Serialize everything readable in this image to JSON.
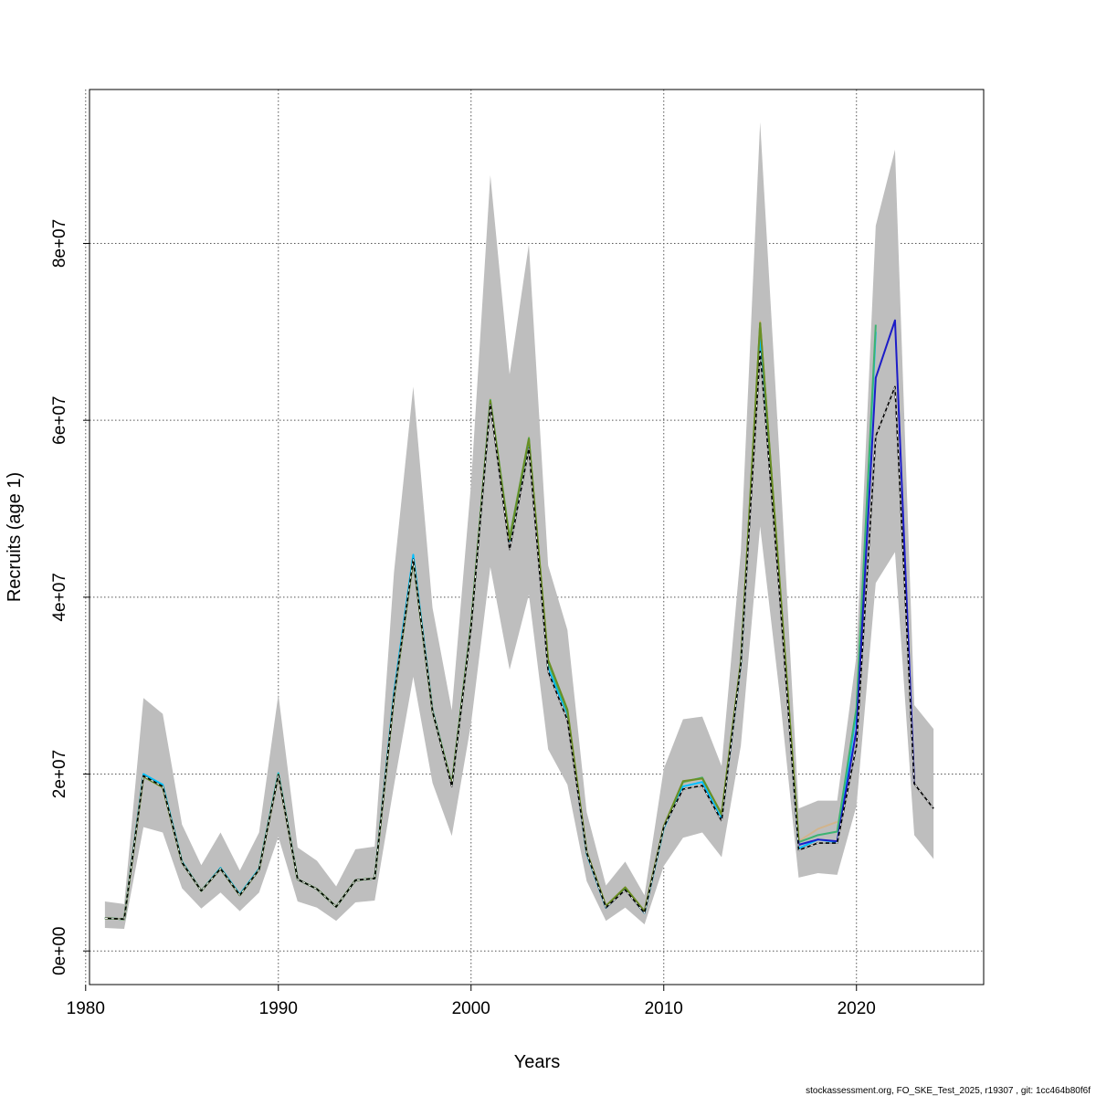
{
  "chart_data": {
    "type": "line",
    "title": "",
    "xlabel": "Years",
    "ylabel": "Recruits (age 1)",
    "xlim": [
      1980.2,
      2026.6
    ],
    "ylim": [
      -3800000.0,
      97400000.0
    ],
    "x_ticks": [
      1980,
      1990,
      2000,
      2010,
      2020
    ],
    "x_tick_labels": [
      "1980",
      "1990",
      "2000",
      "2010",
      "2020"
    ],
    "y_ticks": [
      0,
      20000000,
      40000000,
      60000000,
      80000000
    ],
    "y_tick_labels": [
      "0e+00",
      "2e+07",
      "4e+07",
      "6e+07",
      "8e+07"
    ],
    "grid": true,
    "legend": "none",
    "footer": "stockassessment.org, FO_SKE_Test_2025, r19307 , git: 1cc464b80f6f",
    "confidence_band": {
      "color": "#bebebe",
      "x": [
        1981,
        1982,
        1983,
        1984,
        1985,
        1986,
        1987,
        1988,
        1989,
        1990,
        1991,
        1992,
        1993,
        1994,
        1995,
        1996,
        1997,
        1998,
        1999,
        2000,
        2001,
        2002,
        2003,
        2004,
        2005,
        2006,
        2007,
        2008,
        2009,
        2010,
        2011,
        2012,
        2013,
        2014,
        2015,
        2016,
        2017,
        2018,
        2019,
        2020,
        2021,
        2022,
        2023,
        2024
      ],
      "lower": [
        2600000.0,
        2500000.0,
        14000000.0,
        13400000.0,
        7100000.0,
        4800000.0,
        6600000.0,
        4500000.0,
        6600000.0,
        12900000.0,
        5600000.0,
        4900000.0,
        3400000.0,
        5500000.0,
        5700000.0,
        18700000.0,
        31000000.0,
        19000000.0,
        13000000.0,
        25700000.0,
        43400000.0,
        31800000.0,
        40300000.0,
        22800000.0,
        18800000.0,
        7900000.0,
        3400000.0,
        4900000.0,
        3000000.0,
        9600000.0,
        12800000.0,
        13400000.0,
        10600000.0,
        23200000.0,
        48000000.0,
        29300000.0,
        8300000.0,
        8800000.0,
        8600000.0,
        16400000.0,
        41600000.0,
        45100000.0,
        13100000.0,
        10400000.0
      ],
      "upper": [
        5600000.0,
        5300000.0,
        28600000.0,
        26800000.0,
        14300000.0,
        9700000.0,
        13400000.0,
        9100000.0,
        13400000.0,
        29000000.0,
        11700000.0,
        10200000.0,
        7300000.0,
        11500000.0,
        11800000.0,
        42800000.0,
        63800000.0,
        38800000.0,
        27200000.0,
        52800000.0,
        87700000.0,
        65200000.0,
        79900000.0,
        43600000.0,
        36300000.0,
        15700000.0,
        7400000.0,
        10100000.0,
        6300000.0,
        20600000.0,
        26200000.0,
        26500000.0,
        20900000.0,
        45200000.0,
        93700000.0,
        56100000.0,
        16100000.0,
        17000000.0,
        17000000.0,
        33400000.0,
        82000000.0,
        90600000.0,
        27800000.0,
        25100000.0
      ]
    },
    "series": [
      {
        "color": "#d2b48c",
        "width": 2,
        "x": [
          1981,
          1982,
          1983,
          1984,
          1985,
          1986,
          1987,
          1988,
          1989,
          1990,
          1991,
          1992,
          1993,
          1994,
          1995,
          1996,
          1997,
          1998,
          1999,
          2000,
          2001,
          2002,
          2003,
          2004,
          2005,
          2006,
          2007,
          2008,
          2009,
          2010,
          2011,
          2012,
          2013,
          2014,
          2015,
          2016,
          2017,
          2018,
          2019
        ],
        "y": [
          3700000.0,
          3600000.0,
          19900000.0,
          18700000.0,
          10100000.0,
          6800000.0,
          9300000.0,
          6300000.0,
          9200000.0,
          19900000.0,
          8100000.0,
          7000000.0,
          5000000.0,
          8000000.0,
          8200000.0,
          28800000.0,
          44400000.0,
          27200000.0,
          18800000.0,
          36900000.0,
          62400000.0,
          46800000.0,
          58100000.0,
          32800000.0,
          27200000.0,
          11100000.0,
          5000000.0,
          7100000.0,
          4400000.0,
          14000000.0,
          19000000.0,
          19600000.0,
          15200000.0,
          32600000.0,
          71200000.0,
          42100000.0,
          12400000.0,
          13800000.0,
          14600000.0
        ]
      },
      {
        "color": "#00bfff",
        "width": 2,
        "x": [
          1981,
          1982,
          1983,
          1984,
          1985,
          1986,
          1987,
          1988,
          1989,
          1990,
          1991,
          1992,
          1993,
          1994,
          1995,
          1996,
          1997,
          1998,
          1999,
          2000,
          2001,
          2002,
          2003,
          2004,
          2005,
          2006,
          2007,
          2008,
          2009,
          2010,
          2011,
          2012,
          2013,
          2014,
          2015,
          2016,
          2017,
          2018,
          2019,
          2020,
          2021
        ],
        "y": [
          3700000.0,
          3600000.0,
          20000000.0,
          18800000.0,
          10100000.0,
          6800000.0,
          9400000.0,
          6400000.0,
          9300000.0,
          20100000.0,
          8100000.0,
          7000000.0,
          5000000.0,
          8000000.0,
          8200000.0,
          29200000.0,
          44800000.0,
          27200000.0,
          18800000.0,
          36900000.0,
          62200000.0,
          46400000.0,
          57800000.0,
          31900000.0,
          26800000.0,
          11000000.0,
          4900000.0,
          7000000.0,
          4300000.0,
          13900000.0,
          18600000.0,
          19100000.0,
          14900000.0,
          32500000.0,
          69400000.0,
          41500000.0,
          11600000.0,
          12600000.0,
          12300000.0,
          27000000.0,
          70000000.0
        ]
      },
      {
        "color": "#3cb371",
        "width": 2,
        "x": [
          1981,
          1982,
          1983,
          1984,
          1985,
          1986,
          1987,
          1988,
          1989,
          1990,
          1991,
          1992,
          1993,
          1994,
          1995,
          1996,
          1997,
          1998,
          1999,
          2000,
          2001,
          2002,
          2003,
          2004,
          2005,
          2006,
          2007,
          2008,
          2009,
          2010,
          2011,
          2012,
          2013,
          2014,
          2015,
          2016,
          2017,
          2018,
          2019,
          2020,
          2021
        ],
        "y": [
          3700000.0,
          3600000.0,
          19800000.0,
          18600000.0,
          10000000.0,
          6800000.0,
          9300000.0,
          6300000.0,
          9200000.0,
          20000000.0,
          8100000.0,
          7000000.0,
          5000000.0,
          8000000.0,
          8200000.0,
          28700000.0,
          44200000.0,
          27100000.0,
          18800000.0,
          36800000.0,
          62300000.0,
          46700000.0,
          58000000.0,
          32600000.0,
          27000000.0,
          11100000.0,
          5000000.0,
          7100000.0,
          4400000.0,
          14000000.0,
          19100000.0,
          19600000.0,
          15400000.0,
          32600000.0,
          71000000.0,
          42000000.0,
          12300000.0,
          13100000.0,
          13500000.0,
          27500000.0,
          70800000.0
        ]
      },
      {
        "color": "#1c1cc8",
        "width": 2,
        "x": [
          2016,
          2017,
          2018,
          2019,
          2020,
          2021,
          2022,
          2023
        ],
        "y": [
          41800000.0,
          12000000.0,
          12600000.0,
          12400000.0,
          25000000.0,
          64800000.0,
          71300000.0,
          18900000.0
        ]
      },
      {
        "color": "#6b8e23",
        "width": 2,
        "x": [
          1981,
          1982,
          1983,
          1984,
          1985,
          1986,
          1987,
          1988,
          1989,
          1990,
          1991,
          1992,
          1993,
          1994,
          1995,
          1996,
          1997,
          1998,
          1999,
          2000,
          2001,
          2002,
          2003,
          2004,
          2005,
          2006,
          2007,
          2008,
          2009,
          2010,
          2011,
          2012,
          2013,
          2014,
          2015,
          2016,
          2017
        ],
        "y": [
          3700000.0,
          3600000.0,
          19700000.0,
          18500000.0,
          10000000.0,
          6800000.0,
          9300000.0,
          6300000.0,
          9200000.0,
          19900000.0,
          8100000.0,
          7000000.0,
          5000000.0,
          8000000.0,
          8200000.0,
          28700000.0,
          44200000.0,
          27100000.0,
          18800000.0,
          36800000.0,
          62200000.0,
          46500000.0,
          57900000.0,
          32900000.0,
          27300000.0,
          11200000.0,
          5100000.0,
          7200000.0,
          4500000.0,
          14100000.0,
          19200000.0,
          19500000.0,
          15500000.0,
          32700000.0,
          71000000.0,
          42200000.0,
          12500000.0
        ]
      },
      {
        "color": "#000000",
        "width": 1.6,
        "dashed": true,
        "x": [
          1981,
          1982,
          1983,
          1984,
          1985,
          1986,
          1987,
          1988,
          1989,
          1990,
          1991,
          1992,
          1993,
          1994,
          1995,
          1996,
          1997,
          1998,
          1999,
          2000,
          2001,
          2002,
          2003,
          2004,
          2005,
          2006,
          2007,
          2008,
          2009,
          2010,
          2011,
          2012,
          2013,
          2014,
          2015,
          2016,
          2017,
          2018,
          2019,
          2020,
          2021,
          2022,
          2023,
          2024
        ],
        "y": [
          3700000.0,
          3600000.0,
          19800000.0,
          18600000.0,
          10000000.0,
          6800000.0,
          9300000.0,
          6300000.0,
          9200000.0,
          19900000.0,
          8100000.0,
          7000000.0,
          5000000.0,
          8000000.0,
          8200000.0,
          28800000.0,
          44300000.0,
          27100000.0,
          18600000.0,
          36600000.0,
          61800000.0,
          45400000.0,
          56800000.0,
          31600000.0,
          26100000.0,
          11100000.0,
          4900000.0,
          6900000.0,
          4300000.0,
          14000000.0,
          18300000.0,
          18700000.0,
          14700000.0,
          32400000.0,
          67800000.0,
          40600000.0,
          11400000.0,
          12200000.0,
          12200000.0,
          23200000.0,
          58200000.0,
          63800000.0,
          18900000.0,
          16100000.0
        ]
      }
    ]
  }
}
